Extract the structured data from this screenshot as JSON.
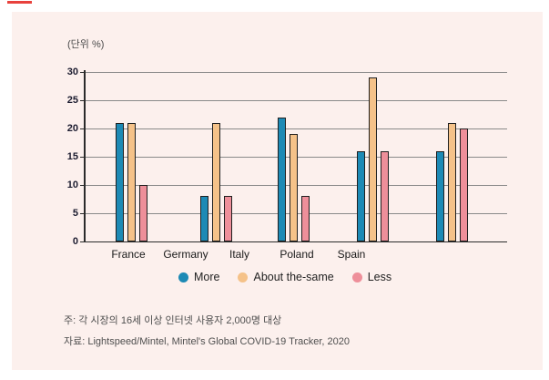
{
  "panel": {
    "background": "#FCF0ED",
    "red_dash_color": "#E8413C"
  },
  "chart_data": {
    "type": "bar",
    "title": "",
    "unit_label": "(단위 %)",
    "categories": [
      "France",
      "Germany",
      "Italy",
      "Poland",
      "Spain"
    ],
    "series": [
      {
        "name": "More",
        "color": "#1D8AB5",
        "values": [
          21,
          8,
          22,
          16,
          16
        ]
      },
      {
        "name": "About the-same",
        "color": "#F5C289",
        "values": [
          21,
          21,
          19,
          29,
          21
        ]
      },
      {
        "name": "Less",
        "color": "#EE8F9A",
        "values": [
          10,
          8,
          8,
          16,
          20
        ]
      }
    ],
    "ylim": [
      0,
      30
    ],
    "yticks": [
      0,
      5,
      10,
      15,
      20,
      25,
      30
    ],
    "grid": true,
    "legend_position": "bottom",
    "axis_color": "#2b2b2b",
    "grid_color": "#8a8a8a",
    "bar_outline_color": "#1f1f1f",
    "layout_note": "Five bar groups are spaced wider than the five category labels: France aligns with group 1 and Poland with group 3, while the rightmost bar group has no label beneath it."
  },
  "notes": {
    "line1": "주: 각 시장의 16세 이상 인터넷 사용자 2,000명 대상",
    "line2": "자료: Lightspeed/Mintel, Mintel's Global COVID-19 Tracker, 2020"
  }
}
